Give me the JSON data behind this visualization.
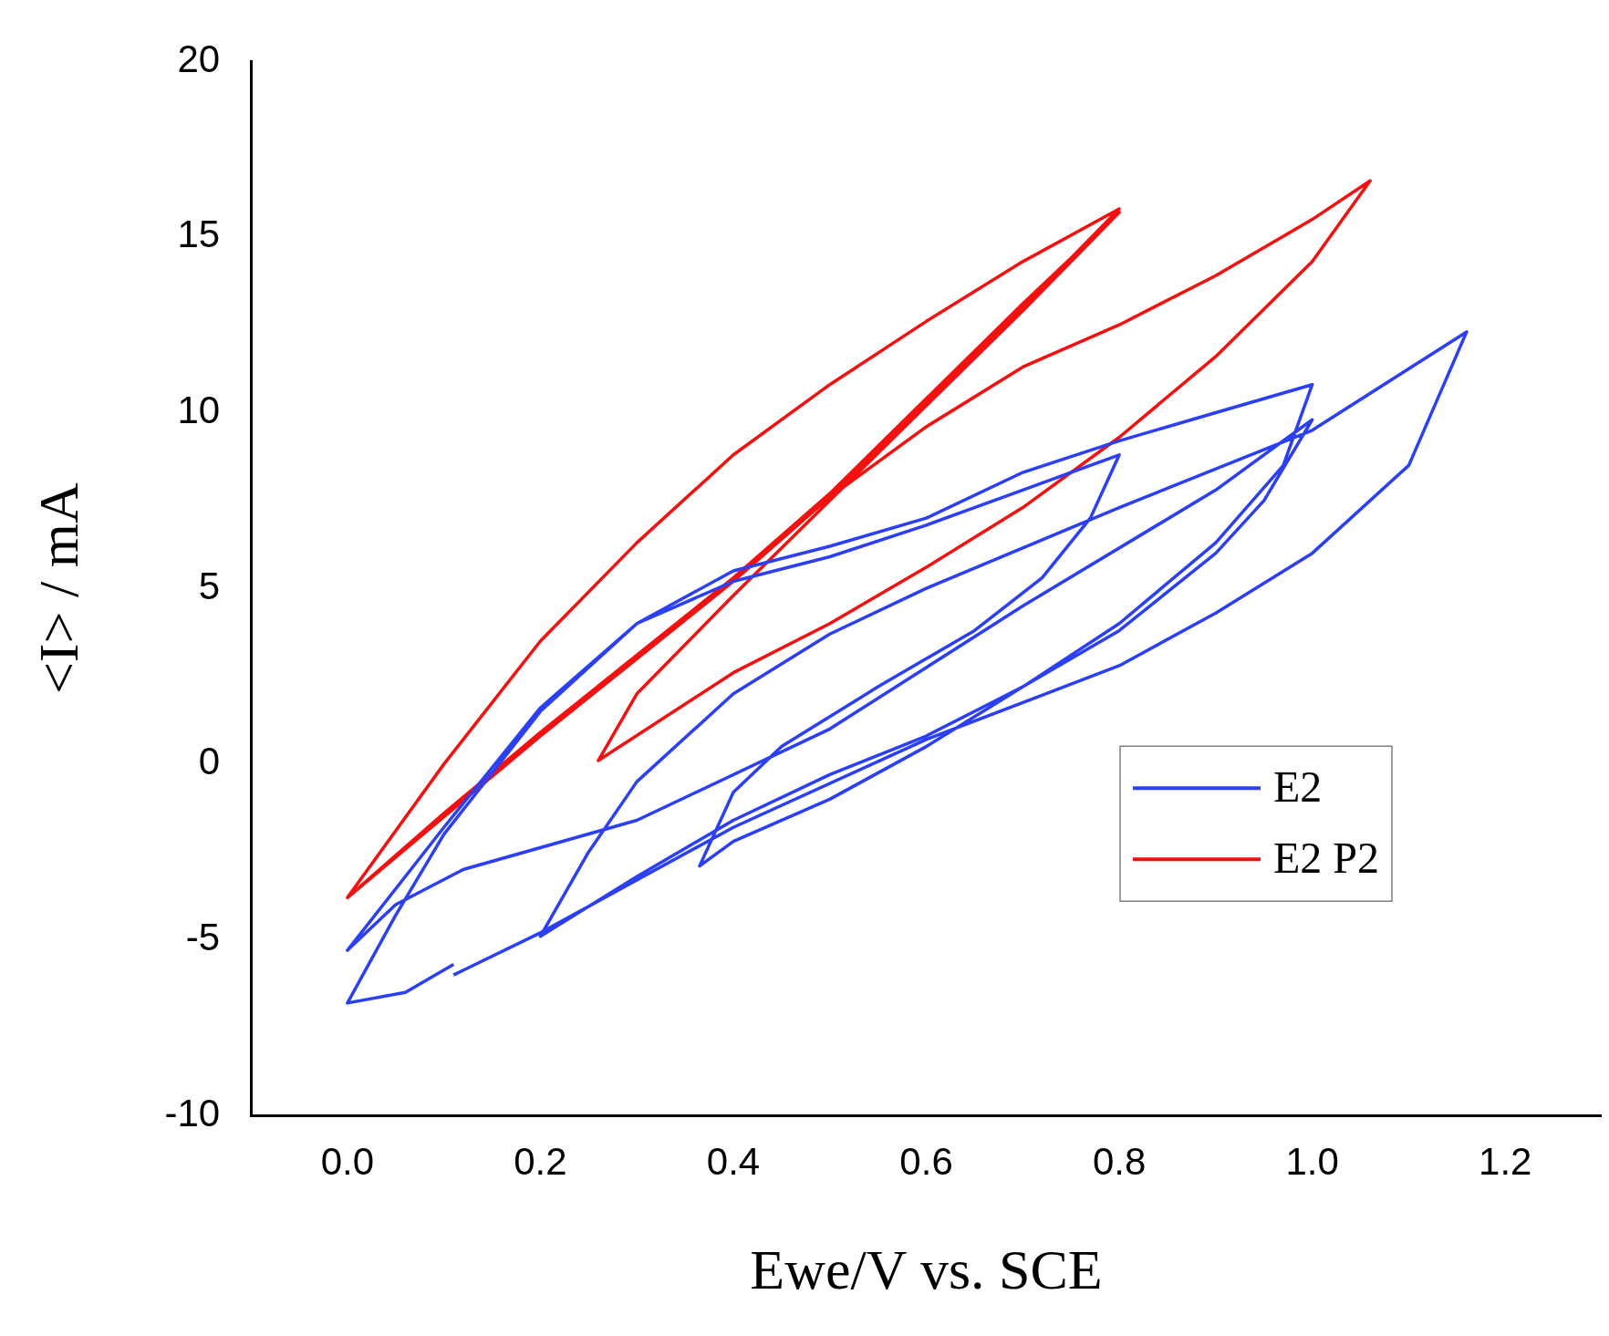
{
  "chart_data": {
    "type": "line",
    "xlabel": "Ewe/V vs. SCE",
    "ylabel": "<I> / mA",
    "xlim": [
      -0.1,
      1.3
    ],
    "ylim": [
      -10,
      20
    ],
    "xticks": [
      {
        "value": 0,
        "label": "0.0"
      },
      {
        "value": 0.2,
        "label": "0.2"
      },
      {
        "value": 0.4,
        "label": "0.4"
      },
      {
        "value": 0.6,
        "label": "0.6"
      },
      {
        "value": 0.8,
        "label": "0.8"
      },
      {
        "value": 1,
        "label": "1.0"
      },
      {
        "value": 1.2,
        "label": "1.2"
      }
    ],
    "yticks": [
      -10,
      -5,
      0,
      5,
      10,
      15,
      20
    ],
    "grid": false,
    "legend": "bottom right",
    "marker": "none",
    "line_style": "solid",
    "series": [
      {
        "name": "E2",
        "color": "#2b3ff5",
        "x": [
          0.11,
          0.06,
          0.0,
          0.05,
          0.1,
          0.2,
          0.3,
          0.4,
          0.5,
          0.6,
          0.7,
          0.8,
          0.77,
          0.72,
          0.65,
          0.55,
          0.45,
          0.4,
          0.365,
          0.4,
          0.5,
          0.6,
          0.7,
          0.8,
          0.9,
          0.97,
          1.0,
          0.9,
          0.8,
          0.7,
          0.6,
          0.5,
          0.4,
          0.3,
          0.2,
          0.1,
          0.0,
          0.05,
          0.12,
          0.3,
          0.5,
          0.7,
          0.9,
          1.0,
          0.95,
          0.9,
          0.8,
          0.7,
          0.6,
          0.5,
          0.4,
          0.3,
          0.2,
          0.25,
          0.3,
          0.4,
          0.5,
          0.6,
          0.8,
          1.0,
          1.16,
          1.1,
          1.0,
          0.9,
          0.8,
          0.6,
          0.4,
          0.2,
          0.11
        ],
        "values": [
          -5.7,
          -6.5,
          -6.8,
          -4.3,
          -2.0,
          1.5,
          4.0,
          5.2,
          5.9,
          6.8,
          7.8,
          8.8,
          7.0,
          5.3,
          3.8,
          2.2,
          0.5,
          -0.8,
          -2.9,
          -2.2,
          -1.0,
          0.5,
          2.2,
          4.0,
          6.3,
          8.5,
          10.8,
          10.0,
          9.2,
          8.3,
          7.0,
          6.2,
          5.5,
          4.0,
          1.6,
          -1.8,
          -5.3,
          -4.0,
          -3.0,
          -1.6,
          1.0,
          4.5,
          7.8,
          9.8,
          7.5,
          6.0,
          3.8,
          2.2,
          0.8,
          -0.3,
          -1.6,
          -3.2,
          -4.9,
          -2.5,
          -0.5,
          2.0,
          3.7,
          5.0,
          7.3,
          9.5,
          12.3,
          8.5,
          6.0,
          4.3,
          2.8,
          0.7,
          -1.8,
          -4.8,
          -6.0
        ]
      },
      {
        "name": "E2 P2",
        "color": "#f51010",
        "x": [
          0.0,
          0.1,
          0.2,
          0.3,
          0.4,
          0.5,
          0.6,
          0.7,
          0.8,
          0.7,
          0.6,
          0.5,
          0.4,
          0.3,
          0.2,
          0.1,
          0.0,
          0.1,
          0.2,
          0.3,
          0.4,
          0.5,
          0.6,
          0.7,
          0.8,
          0.7,
          0.6,
          0.5,
          0.4,
          0.3,
          0.26,
          0.4,
          0.5,
          0.6,
          0.7,
          0.8,
          0.9,
          1.0,
          1.06,
          1.0,
          0.9,
          0.8,
          0.7,
          0.6,
          0.5
        ],
        "values": [
          -3.8,
          0.0,
          3.5,
          6.3,
          8.8,
          10.8,
          12.6,
          14.3,
          15.8,
          13.0,
          10.3,
          7.6,
          5.2,
          3.0,
          0.8,
          -1.5,
          -3.8,
          -1.4,
          0.9,
          3.1,
          5.3,
          7.7,
          10.4,
          13.1,
          15.7,
          12.9,
          10.2,
          7.5,
          4.8,
          2.0,
          0.1,
          2.6,
          4.0,
          5.6,
          7.3,
          9.3,
          11.6,
          14.3,
          16.6,
          15.5,
          13.9,
          12.5,
          11.3,
          9.6,
          7.6
        ]
      }
    ]
  }
}
